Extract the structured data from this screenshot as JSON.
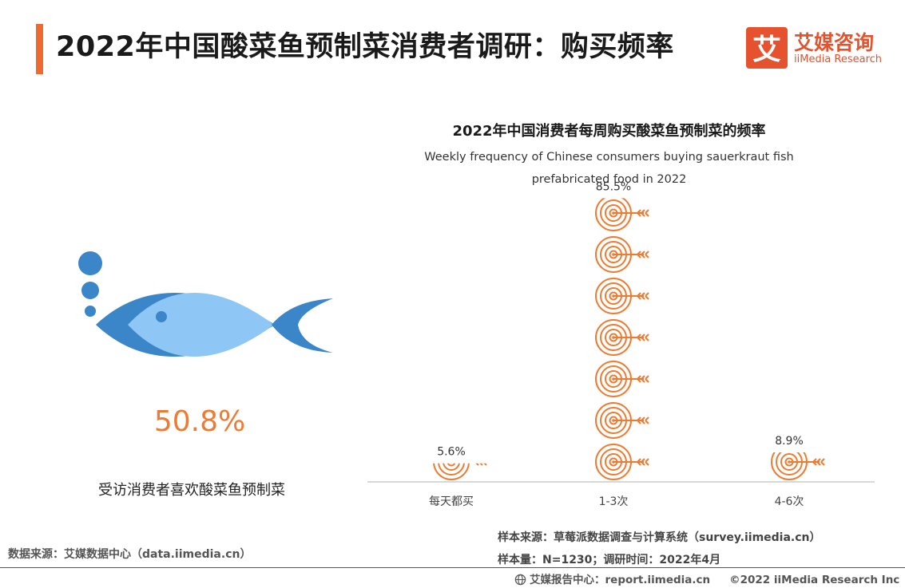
{
  "header": {
    "title": "2022年中国酸菜鱼预制菜消费者调研：购买频率",
    "logo_cn": "艾媒咨询",
    "logo_en": "iiMedia Research",
    "logo_glyph": "艾"
  },
  "left_panel": {
    "percent": "50.8%",
    "caption": "受访消费者喜欢酸菜鱼预制菜",
    "icon": "fish-icon"
  },
  "chart_data": {
    "type": "bar",
    "title": "2022年中国消费者每周购买酸菜鱼预制菜的频率",
    "subtitle_lines": [
      "Weekly frequency of Chinese consumers buying sauerkraut fish",
      "prefabricated food in 2022"
    ],
    "categories": [
      "每天都买",
      "1-3次",
      "4-6次"
    ],
    "values": [
      5.6,
      85.5,
      8.9
    ],
    "value_labels": [
      "5.6%",
      "85.5%",
      "8.9%"
    ],
    "unit": "%",
    "mark": "target-arrow pictogram stack",
    "colors": {
      "mark": "#ee7b31",
      "axis": "#cccccc"
    }
  },
  "footer": {
    "source_left": "数据来源：艾媒数据中心（data.iimedia.cn）",
    "sample_source": "样本来源：草莓派数据调查与计算系统（survey.iimedia.cn）",
    "sample_size": "样本量：N=1230；调研时间：2022年4月",
    "report_center": "艾媒报告中心：report.iimedia.cn",
    "copyright": "©2022  iiMedia Research Inc"
  },
  "colors": {
    "accent": "#ee6a31",
    "brand": "#e5522d",
    "fish_light": "#8ec7f5",
    "fish_dark": "#3a86c8"
  }
}
